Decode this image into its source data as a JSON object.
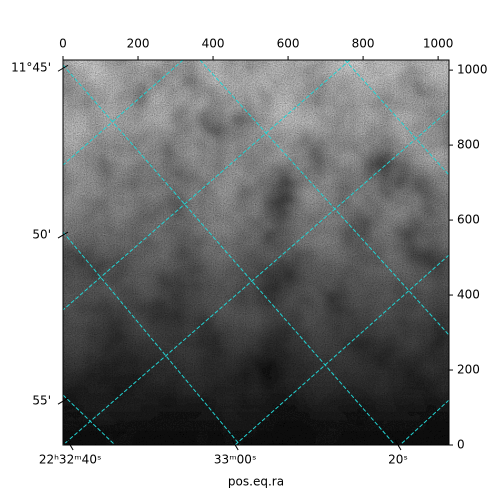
{
  "chart_data": {
    "type": "image",
    "xlabel": "pos.eq.ra",
    "xlim": [
      0,
      1029
    ],
    "ylim": [
      0,
      1027
    ],
    "xticks": [
      0,
      200,
      400,
      600,
      800,
      1000
    ],
    "yticks": [
      0,
      200,
      400,
      600,
      800,
      1000
    ],
    "bottom_ticks": [
      {
        "value": 19,
        "label": "22ʰ32ᵐ40ˢ"
      },
      {
        "value": 459,
        "label": "33ᵐ00ˢ"
      },
      {
        "value": 893,
        "label": "20ˢ"
      }
    ],
    "left_ticks": [
      {
        "value": 1005,
        "label": "11°45'"
      },
      {
        "value": 560,
        "label": "50'"
      },
      {
        "value": 117,
        "label": "55'"
      }
    ],
    "grid_color": "#22d3d3"
  }
}
